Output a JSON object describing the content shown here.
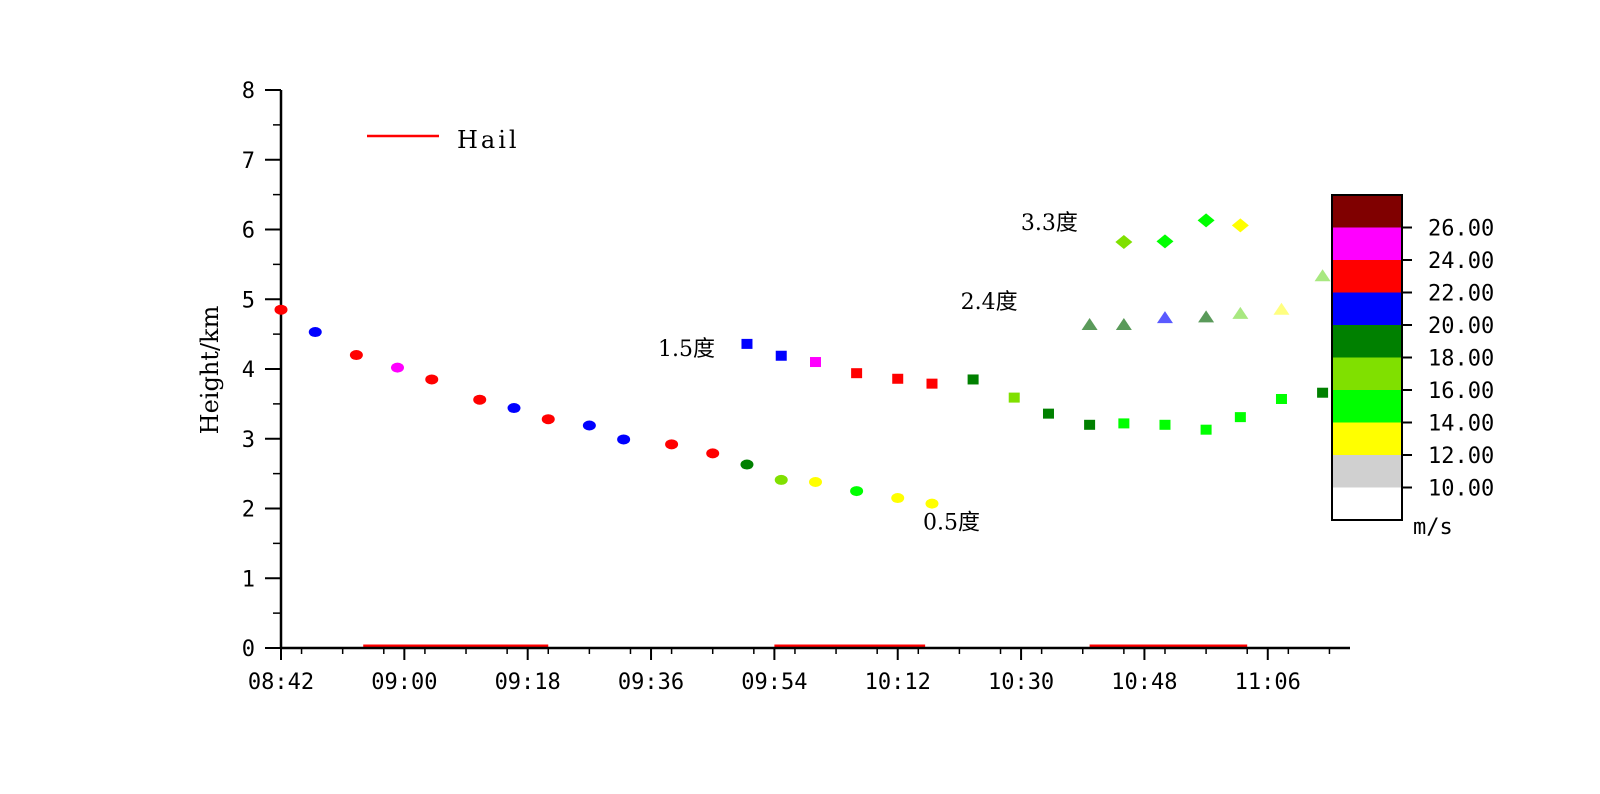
{
  "chart_data": {
    "type": "scatter",
    "ylabel": "Height/km",
    "ylim": [
      0,
      8
    ],
    "yticks": [
      "0",
      "1",
      "2",
      "3",
      "4",
      "5",
      "6",
      "7",
      "8"
    ],
    "xlim": [
      "08:42",
      "11:18"
    ],
    "xticks": [
      "08:42",
      "09:00",
      "09:18",
      "09:36",
      "09:54",
      "10:12",
      "10:30",
      "10:48",
      "11:06"
    ],
    "legend": {
      "label": "Hail",
      "color": "#ff0000",
      "position": "top-left"
    },
    "hail_periods": [
      [
        "08:54",
        "09:21"
      ],
      [
        "09:54",
        "10:16"
      ],
      [
        "10:40",
        "11:03"
      ]
    ],
    "colorbar": {
      "unit": "m/s",
      "ticks": [
        "26.00",
        "24.00",
        "22.00",
        "20.00",
        "18.00",
        "16.00",
        "14.00",
        "12.00",
        "10.00"
      ],
      "bins": [
        {
          "min": 26,
          "max": 28,
          "color": "#800000"
        },
        {
          "min": 24,
          "max": 26,
          "color": "#ff00ff"
        },
        {
          "min": 22,
          "max": 24,
          "color": "#ff0000"
        },
        {
          "min": 20,
          "max": 22,
          "color": "#0000ff"
        },
        {
          "min": 18,
          "max": 20,
          "color": "#008000"
        },
        {
          "min": 16,
          "max": 18,
          "color": "#80e000"
        },
        {
          "min": 14,
          "max": 16,
          "color": "#00ff00"
        },
        {
          "min": 12,
          "max": 14,
          "color": "#ffff00"
        },
        {
          "min": 10,
          "max": 12,
          "color": "#d0d0d0"
        },
        {
          "min": 8,
          "max": 10,
          "color": "#ffffff"
        }
      ]
    },
    "series": [
      {
        "name": "0.5度",
        "marker": "circle",
        "points": [
          [
            "08:42",
            4.85,
            "#ff0000"
          ],
          [
            "08:47",
            4.53,
            "#0000ff"
          ],
          [
            "08:53",
            4.2,
            "#ff0000"
          ],
          [
            "08:59",
            4.02,
            "#ff00ff"
          ],
          [
            "09:04",
            3.85,
            "#ff0000"
          ],
          [
            "09:11",
            3.56,
            "#ff0000"
          ],
          [
            "09:16",
            3.44,
            "#0000ff"
          ],
          [
            "09:21",
            3.28,
            "#ff0000"
          ],
          [
            "09:27",
            3.19,
            "#0000ff"
          ],
          [
            "09:32",
            2.99,
            "#0000ff"
          ],
          [
            "09:39",
            2.92,
            "#ff0000"
          ],
          [
            "09:45",
            2.79,
            "#ff0000"
          ],
          [
            "09:50",
            2.63,
            "#008000"
          ],
          [
            "09:55",
            2.41,
            "#80e000"
          ],
          [
            "10:00",
            2.38,
            "#ffff00"
          ],
          [
            "10:06",
            2.25,
            "#00ff00"
          ],
          [
            "10:12",
            2.15,
            "#ffff00"
          ],
          [
            "10:17",
            2.07,
            "#ffff00"
          ]
        ]
      },
      {
        "name": "1.5度",
        "marker": "square",
        "points": [
          [
            "09:50",
            4.36,
            "#0000ff"
          ],
          [
            "09:55",
            4.19,
            "#0000ff"
          ],
          [
            "10:00",
            4.1,
            "#ff00ff"
          ],
          [
            "10:06",
            3.94,
            "#ff0000"
          ],
          [
            "10:12",
            3.86,
            "#ff0000"
          ],
          [
            "10:17",
            3.79,
            "#ff0000"
          ],
          [
            "10:23",
            3.85,
            "#008000"
          ],
          [
            "10:29",
            3.59,
            "#80e000"
          ],
          [
            "10:34",
            3.36,
            "#008000"
          ],
          [
            "10:40",
            3.2,
            "#008000"
          ],
          [
            "10:45",
            3.22,
            "#00ff00"
          ],
          [
            "10:51",
            3.2,
            "#00ff00"
          ],
          [
            "10:57",
            3.13,
            "#00ff00"
          ],
          [
            "11:02",
            3.31,
            "#00ff00"
          ],
          [
            "11:08",
            3.57,
            "#00ff00"
          ],
          [
            "11:14",
            3.66,
            "#008000"
          ]
        ]
      },
      {
        "name": "2.4度",
        "marker": "triangle",
        "points": [
          [
            "10:40",
            4.63,
            "#5a9a5a"
          ],
          [
            "10:45",
            4.63,
            "#5a9a5a"
          ],
          [
            "10:51",
            4.73,
            "#5a5aff"
          ],
          [
            "10:57",
            4.74,
            "#5a9a5a"
          ],
          [
            "11:02",
            4.79,
            "#a8e880"
          ],
          [
            "11:08",
            4.85,
            "#ffff80"
          ],
          [
            "11:14",
            5.33,
            "#a8e880"
          ]
        ]
      },
      {
        "name": "3.3度",
        "marker": "diamond",
        "points": [
          [
            "10:45",
            5.82,
            "#80e000"
          ],
          [
            "10:51",
            5.83,
            "#00ff00"
          ],
          [
            "10:57",
            6.13,
            "#00ff00"
          ],
          [
            "11:02",
            6.06,
            "#ffff00"
          ]
        ]
      }
    ],
    "series_labels": [
      {
        "text": "0.5度",
        "series": 0
      },
      {
        "text": "1.5度",
        "series": 1
      },
      {
        "text": "2.4度",
        "series": 2
      },
      {
        "text": "3.3度",
        "series": 3
      }
    ]
  }
}
